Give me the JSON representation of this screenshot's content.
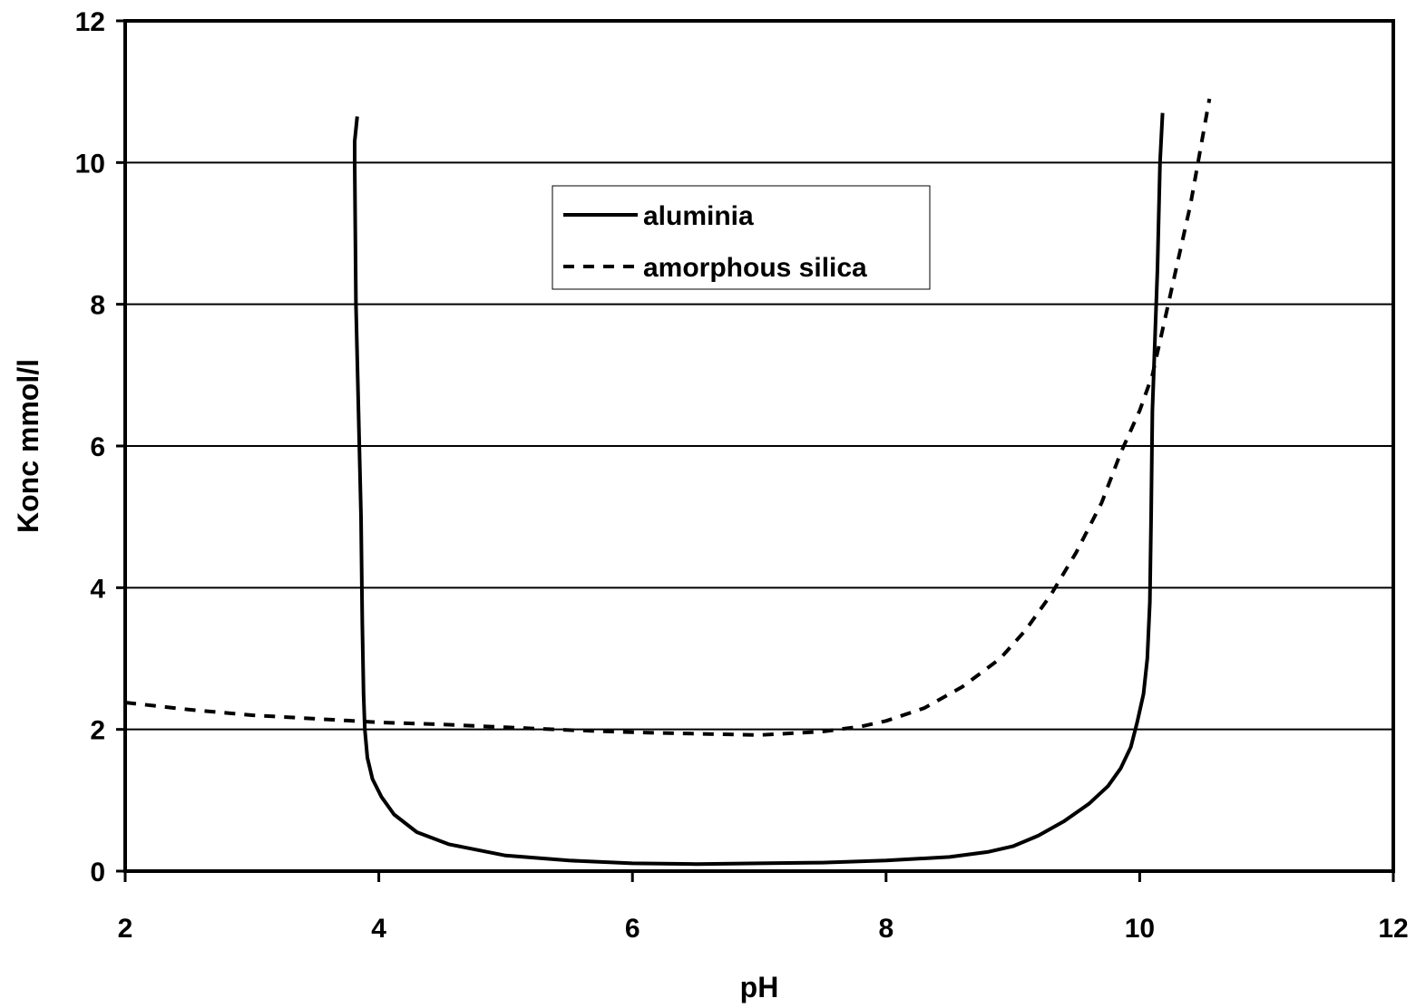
{
  "chart_data": {
    "type": "line",
    "title": "",
    "xlabel": "pH",
    "ylabel": "Konc mmol/l",
    "xlim": [
      2,
      12
    ],
    "ylim": [
      0,
      12
    ],
    "xticks": [
      2,
      4,
      6,
      8,
      10,
      12
    ],
    "yticks": [
      0,
      2,
      4,
      6,
      8,
      10,
      12
    ],
    "grid": "horizontal",
    "legend_position": "top-center",
    "series": [
      {
        "name": "aluminia",
        "style": "solid",
        "color": "#000000",
        "x": [
          3.83,
          3.81,
          3.81,
          3.82,
          3.84,
          3.86,
          3.87,
          3.88,
          3.89,
          3.91,
          3.95,
          4.02,
          4.12,
          4.3,
          4.55,
          5.0,
          5.5,
          6.0,
          6.5,
          7.0,
          7.5,
          8.0,
          8.5,
          8.8,
          9.0,
          9.2,
          9.4,
          9.6,
          9.75,
          9.85,
          9.93,
          9.98,
          10.03,
          10.06,
          10.08,
          10.09,
          10.1,
          10.12,
          10.14,
          10.16,
          10.18
        ],
        "y": [
          10.65,
          10.3,
          10.0,
          8.0,
          6.5,
          5.0,
          3.5,
          2.5,
          2.0,
          1.6,
          1.3,
          1.05,
          0.8,
          0.55,
          0.38,
          0.22,
          0.15,
          0.11,
          0.1,
          0.11,
          0.12,
          0.15,
          0.2,
          0.27,
          0.35,
          0.5,
          0.7,
          0.95,
          1.2,
          1.45,
          1.75,
          2.1,
          2.5,
          3.0,
          3.8,
          5.0,
          6.5,
          7.5,
          8.5,
          10.0,
          10.7
        ]
      },
      {
        "name": "amorphous silica",
        "style": "dashed",
        "color": "#000000",
        "x": [
          2.0,
          2.5,
          3.0,
          3.5,
          4.0,
          4.5,
          5.0,
          5.5,
          6.0,
          6.5,
          7.0,
          7.5,
          7.8,
          8.0,
          8.3,
          8.6,
          8.9,
          9.1,
          9.3,
          9.5,
          9.7,
          9.85,
          10.0,
          10.1,
          10.2,
          10.3,
          10.4,
          10.48,
          10.55
        ],
        "y": [
          2.38,
          2.28,
          2.2,
          2.15,
          2.1,
          2.07,
          2.03,
          1.99,
          1.96,
          1.94,
          1.92,
          1.97,
          2.04,
          2.12,
          2.3,
          2.6,
          3.0,
          3.4,
          3.9,
          4.5,
          5.2,
          5.9,
          6.5,
          7.0,
          7.8,
          8.6,
          9.4,
          10.2,
          10.9
        ]
      }
    ]
  }
}
